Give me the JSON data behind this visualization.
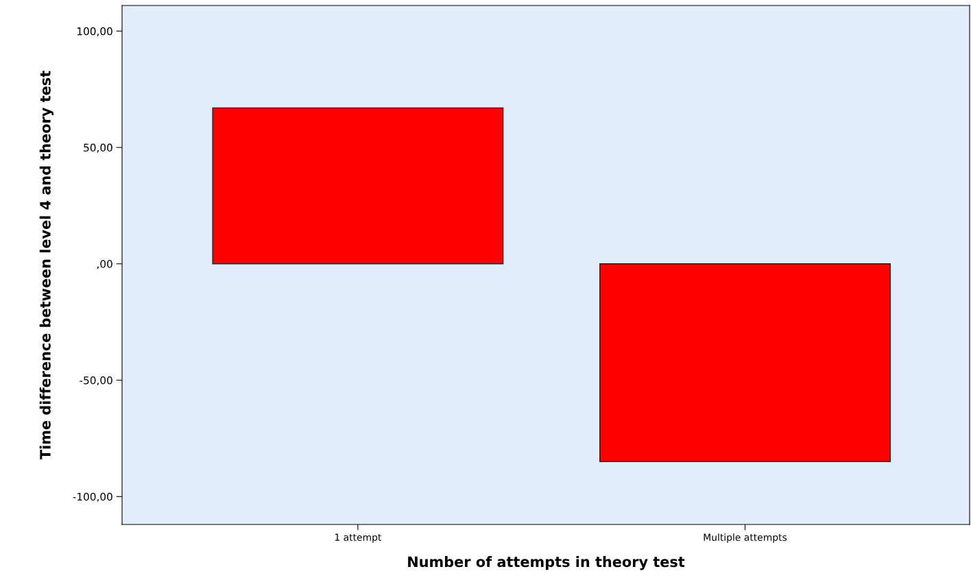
{
  "chart_data": {
    "type": "bar",
    "xlabel": "Number of attempts in theory test",
    "ylabel": "Time difference between level 4 and theory test",
    "categories": [
      "1 attempt",
      "Multiple attempts"
    ],
    "values": [
      67,
      -85
    ],
    "color": "#ff0000",
    "ylim": [
      -112,
      111
    ],
    "yticks": [
      {
        "value": -100,
        "label": "-100,00"
      },
      {
        "value": -50,
        "label": "-50,00"
      },
      {
        "value": 0,
        "label": ",00"
      },
      {
        "value": 50,
        "label": "50,00"
      },
      {
        "value": 100,
        "label": "100,00"
      }
    ],
    "grid": false,
    "legend": false
  }
}
